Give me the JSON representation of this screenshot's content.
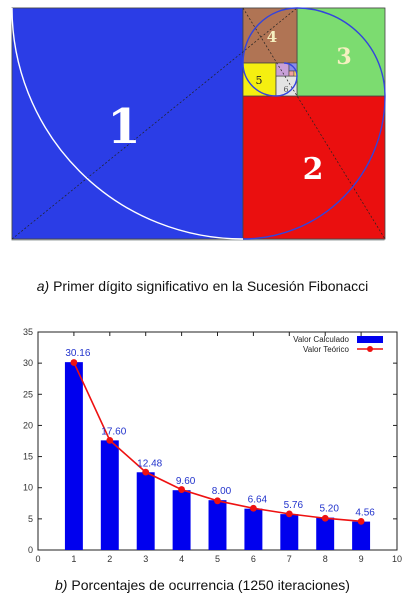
{
  "figure_a": {
    "tag": "a)",
    "caption": "Primer dígito significativo en la Sucesión Fibonacci",
    "squares": [
      {
        "label": "1",
        "color": "#2b3de6"
      },
      {
        "label": "2",
        "color": "#ea0f0f"
      },
      {
        "label": "3",
        "color": "#7cdc70"
      },
      {
        "label": "4",
        "color": "#b07454"
      },
      {
        "label": "5",
        "color": "#f5ef10"
      },
      {
        "label": "6",
        "color": "#e4e4e4"
      }
    ]
  },
  "figure_b": {
    "tag": "b)",
    "caption": "Porcentajes de ocurrencia (1250 iteraciones)"
  },
  "chart_data": {
    "type": "bar",
    "x": [
      1,
      2,
      3,
      4,
      5,
      6,
      7,
      8,
      9
    ],
    "series": [
      {
        "name": "Valor Calculado",
        "kind": "bar",
        "color": "#0000ee",
        "values": [
          30.16,
          17.6,
          12.48,
          9.6,
          8.0,
          6.64,
          5.76,
          5.2,
          4.56
        ]
      },
      {
        "name": "Valor Teórico",
        "kind": "line",
        "color": "#ee1111",
        "values": [
          30.1,
          17.6,
          12.5,
          9.7,
          7.9,
          6.7,
          5.8,
          5.1,
          4.6
        ]
      }
    ],
    "data_labels": [
      "30.16",
      "17.60",
      "12.48",
      "9.60",
      "8.00",
      "6.64",
      "5.76",
      "5.20",
      "4.56"
    ],
    "xlim": [
      0,
      10
    ],
    "ylim": [
      0,
      35
    ],
    "xticks": [
      "0",
      "1",
      "2",
      "3",
      "4",
      "5",
      "6",
      "7",
      "8",
      "9",
      "10"
    ],
    "yticks": [
      "0",
      "5",
      "10",
      "15",
      "20",
      "25",
      "30",
      "35"
    ],
    "legend": "top-right",
    "grid": false,
    "title": "",
    "xlabel": "",
    "ylabel": ""
  }
}
